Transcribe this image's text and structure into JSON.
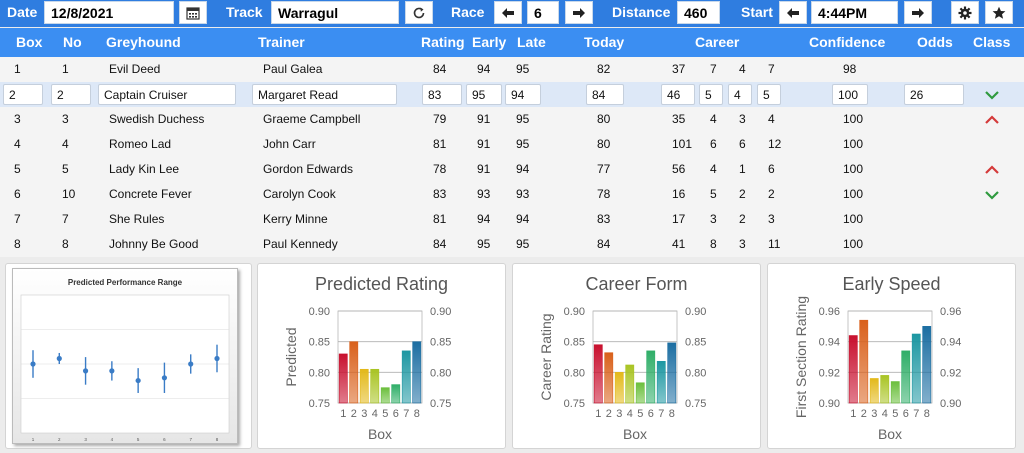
{
  "toolbar": {
    "date_label": "Date",
    "date_value": "12/8/2021",
    "calendar_icon": "calendar-icon",
    "track_label": "Track",
    "track_value": "Warragul",
    "refresh_icon": "refresh-icon",
    "race_label": "Race",
    "race_value": "6",
    "distance_label": "Distance",
    "distance_value": "460",
    "start_label": "Start",
    "start_value": "4:44PM",
    "settings_icon": "gear-icon",
    "favorite_icon": "star-icon",
    "colors": {
      "bar": "#2f7de0",
      "header": "#3b8ef2"
    }
  },
  "columns": {
    "box": "Box",
    "no": "No",
    "greyhound": "Greyhound",
    "trainer": "Trainer",
    "rating": "Rating",
    "early": "Early",
    "late": "Late",
    "today": "Today",
    "career": "Career",
    "confidence": "Confidence",
    "odds": "Odds",
    "class": "Class"
  },
  "runners": [
    {
      "box": "1",
      "no": "1",
      "name": "Evil Deed",
      "trainer": "Paul Galea",
      "rating": "84",
      "early": "94",
      "late": "95",
      "today": "82",
      "c1": "37",
      "c2": "7",
      "c3": "4",
      "c4": "7",
      "confidence": "98",
      "odds": "",
      "class": ""
    },
    {
      "box": "2",
      "no": "2",
      "name": "Captain Cruiser",
      "trainer": "Margaret Read",
      "rating": "83",
      "early": "95",
      "late": "94",
      "today": "84",
      "c1": "46",
      "c2": "5",
      "c3": "4",
      "c4": "5",
      "confidence": "100",
      "odds": "26",
      "class": "down"
    },
    {
      "box": "3",
      "no": "3",
      "name": "Swedish Duchess",
      "trainer": "Graeme Campbell",
      "rating": "79",
      "early": "91",
      "late": "95",
      "today": "80",
      "c1": "35",
      "c2": "4",
      "c3": "3",
      "c4": "4",
      "confidence": "100",
      "odds": "",
      "class": "up"
    },
    {
      "box": "4",
      "no": "4",
      "name": "Romeo Lad",
      "trainer": "John Carr",
      "rating": "81",
      "early": "91",
      "late": "95",
      "today": "80",
      "c1": "101",
      "c2": "6",
      "c3": "6",
      "c4": "12",
      "confidence": "100",
      "odds": "",
      "class": ""
    },
    {
      "box": "5",
      "no": "5",
      "name": "Lady Kin Lee",
      "trainer": "Gordon Edwards",
      "rating": "78",
      "early": "91",
      "late": "94",
      "today": "77",
      "c1": "56",
      "c2": "4",
      "c3": "1",
      "c4": "6",
      "confidence": "100",
      "odds": "",
      "class": "up"
    },
    {
      "box": "6",
      "no": "10",
      "name": "Concrete Fever",
      "trainer": "Carolyn Cook",
      "rating": "83",
      "early": "93",
      "late": "93",
      "today": "78",
      "c1": "16",
      "c2": "5",
      "c3": "2",
      "c4": "2",
      "confidence": "100",
      "odds": "",
      "class": "down"
    },
    {
      "box": "7",
      "no": "7",
      "name": "She Rules",
      "trainer": "Kerry Minne",
      "rating": "81",
      "early": "94",
      "late": "94",
      "today": "83",
      "c1": "17",
      "c2": "3",
      "c3": "2",
      "c4": "3",
      "confidence": "100",
      "odds": "",
      "class": ""
    },
    {
      "box": "8",
      "no": "8",
      "name": "Johnny Be Good",
      "trainer": "Paul Kennedy",
      "rating": "84",
      "early": "95",
      "late": "95",
      "today": "84",
      "c1": "41",
      "c2": "8",
      "c3": "3",
      "c4": "11",
      "confidence": "100",
      "odds": "",
      "class": ""
    }
  ],
  "selected_row": 1,
  "class_colors": {
    "up": "#d43a3a",
    "down": "#2f9a3f"
  },
  "chart_data": [
    {
      "type": "scatter",
      "title": "Predicted Performance Range",
      "x": [
        1,
        2,
        3,
        4,
        5,
        6,
        7,
        8
      ],
      "y": [
        0.5,
        0.46,
        0.55,
        0.55,
        0.62,
        0.6,
        0.5,
        0.46
      ],
      "error": [
        0.1,
        0.04,
        0.1,
        0.07,
        0.09,
        0.11,
        0.07,
        0.1
      ],
      "color": "#3a7cc6"
    },
    {
      "type": "bar",
      "title": "Predicted Rating",
      "xlabel": "Box",
      "ylabel": "Predicted",
      "categories": [
        "1",
        "2",
        "3",
        "4",
        "5",
        "6",
        "7",
        "8"
      ],
      "values": [
        0.83,
        0.85,
        0.805,
        0.805,
        0.775,
        0.78,
        0.835,
        0.85
      ],
      "ylim": [
        0.75,
        0.9
      ],
      "ticks": [
        "0.90",
        "0.85",
        "0.80",
        "0.75"
      ]
    },
    {
      "type": "bar",
      "title": "Career Form",
      "xlabel": "Box",
      "ylabel": "Career Rating",
      "categories": [
        "1",
        "2",
        "3",
        "4",
        "5",
        "6",
        "7",
        "8"
      ],
      "values": [
        0.845,
        0.832,
        0.8,
        0.812,
        0.783,
        0.835,
        0.818,
        0.848
      ],
      "ylim": [
        0.75,
        0.9
      ],
      "ticks": [
        "0.90",
        "0.85",
        "0.80",
        "0.75"
      ]
    },
    {
      "type": "bar",
      "title": "Early Speed",
      "xlabel": "Box",
      "ylabel": "First Section Rating",
      "categories": [
        "1",
        "2",
        "3",
        "4",
        "5",
        "6",
        "7",
        "8"
      ],
      "values": [
        0.944,
        0.954,
        0.916,
        0.918,
        0.914,
        0.934,
        0.945,
        0.95
      ],
      "ylim": [
        0.9,
        0.96
      ],
      "ticks": [
        "0.96",
        "0.94",
        "0.92",
        "0.90"
      ]
    }
  ],
  "bar_colors": [
    "#c8102e",
    "#d9601a",
    "#e3b91a",
    "#a9c424",
    "#6bbf3c",
    "#2fae68",
    "#1d97a2",
    "#1c6ea2"
  ]
}
